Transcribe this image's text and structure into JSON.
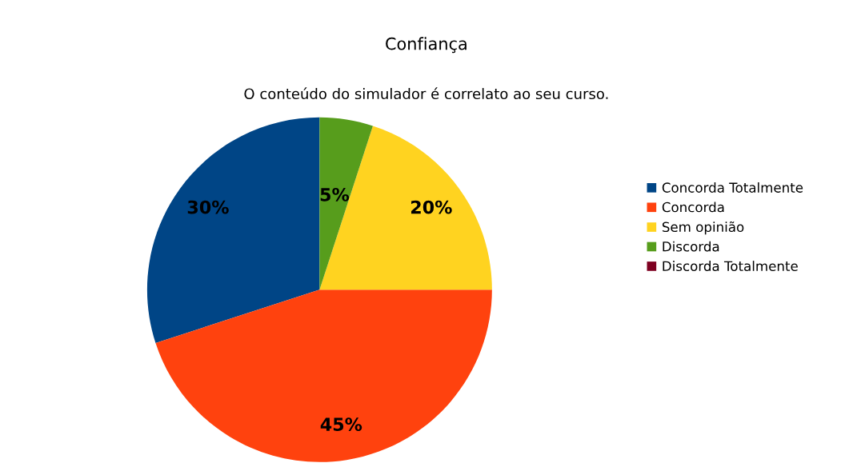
{
  "chart_data": {
    "type": "pie",
    "title": "Confiança",
    "subtitle": "O conteúdo do simulador é correlato ao seu curso.",
    "categories": [
      "Concorda Totalmente",
      "Concorda",
      "Sem opinião",
      "Discorda",
      "Discorda Totalmente"
    ],
    "values": [
      30,
      45,
      20,
      5,
      0
    ],
    "colors": [
      "#004586",
      "#ff420e",
      "#ffd320",
      "#579d1c",
      "#7e0021"
    ],
    "value_labels": [
      "30%",
      "45%",
      "20%",
      "5%",
      null
    ],
    "legend": "right"
  }
}
